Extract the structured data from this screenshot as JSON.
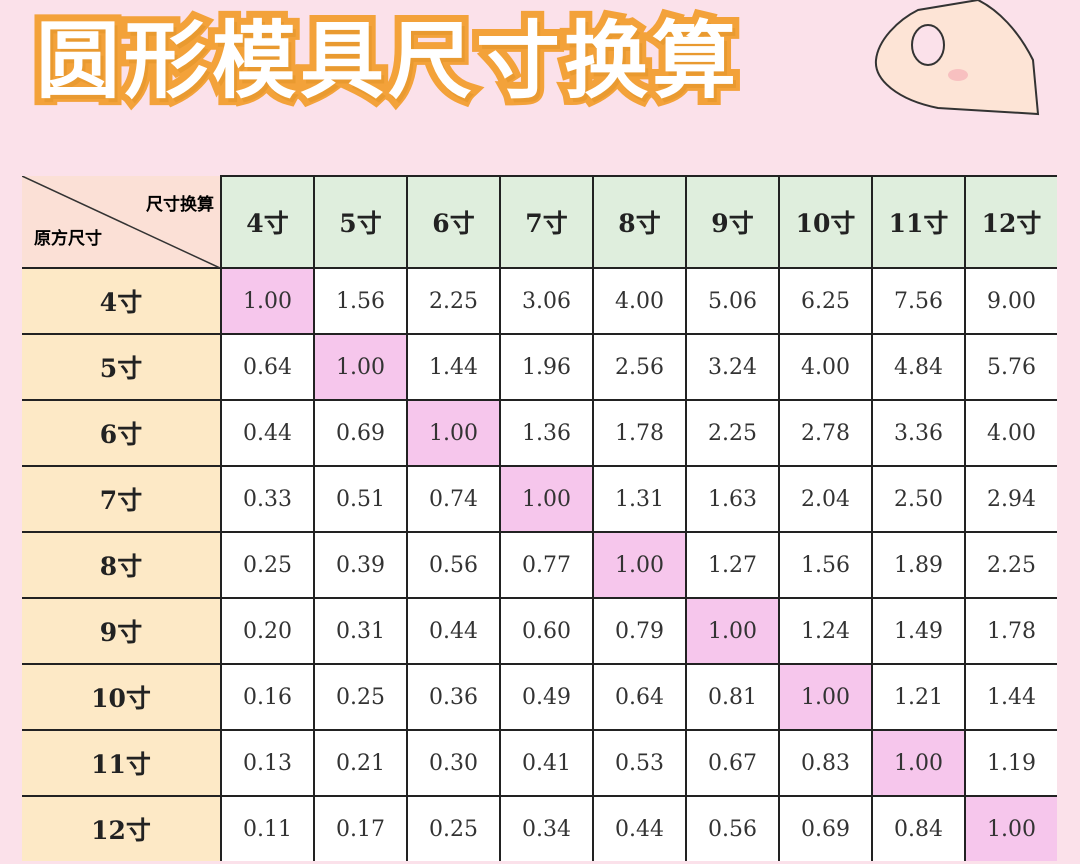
{
  "title": "圆形模具尺寸换算",
  "hand_icon": "ok-hand-gesture",
  "colors": {
    "background": "#fbe1ea",
    "header": "#dfeedd",
    "row_header": "#fde9c6",
    "diagonal": "#f6c6ec",
    "title_stroke": "#f3a23a"
  },
  "table": {
    "corner_top": "尺寸换算",
    "corner_bottom": "原方尺寸",
    "columns": [
      "4寸",
      "5寸",
      "6寸",
      "7寸",
      "8寸",
      "9寸",
      "10寸",
      "11寸",
      "12寸"
    ],
    "rows": [
      {
        "label": "4寸",
        "values": [
          "1.00",
          "1.56",
          "2.25",
          "3.06",
          "4.00",
          "5.06",
          "6.25",
          "7.56",
          "9.00"
        ]
      },
      {
        "label": "5寸",
        "values": [
          "0.64",
          "1.00",
          "1.44",
          "1.96",
          "2.56",
          "3.24",
          "4.00",
          "4.84",
          "5.76"
        ]
      },
      {
        "label": "6寸",
        "values": [
          "0.44",
          "0.69",
          "1.00",
          "1.36",
          "1.78",
          "2.25",
          "2.78",
          "3.36",
          "4.00"
        ]
      },
      {
        "label": "7寸",
        "values": [
          "0.33",
          "0.51",
          "0.74",
          "1.00",
          "1.31",
          "1.63",
          "2.04",
          "2.50",
          "2.94"
        ]
      },
      {
        "label": "8寸",
        "values": [
          "0.25",
          "0.39",
          "0.56",
          "0.77",
          "1.00",
          "1.27",
          "1.56",
          "1.89",
          "2.25"
        ]
      },
      {
        "label": "9寸",
        "values": [
          "0.20",
          "0.31",
          "0.44",
          "0.60",
          "0.79",
          "1.00",
          "1.24",
          "1.49",
          "1.78"
        ]
      },
      {
        "label": "10寸",
        "values": [
          "0.16",
          "0.25",
          "0.36",
          "0.49",
          "0.64",
          "0.81",
          "1.00",
          "1.21",
          "1.44"
        ]
      },
      {
        "label": "11寸",
        "values": [
          "0.13",
          "0.21",
          "0.30",
          "0.41",
          "0.53",
          "0.67",
          "0.83",
          "1.00",
          "1.19"
        ]
      },
      {
        "label": "12寸",
        "values": [
          "0.11",
          "0.17",
          "0.25",
          "0.34",
          "0.44",
          "0.56",
          "0.69",
          "0.84",
          "1.00"
        ]
      }
    ]
  }
}
